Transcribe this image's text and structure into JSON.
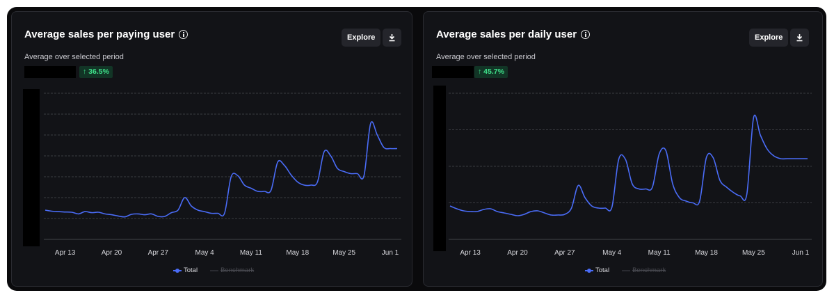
{
  "colors": {
    "line": "#4a6cf7",
    "grid": "#4a4b52",
    "badge_bg": "#123526",
    "badge_fg": "#3fe08a"
  },
  "buttons": {
    "explore_label": "Explore"
  },
  "cards": [
    {
      "title": "Average sales per paying user",
      "subtitle": "Average over selected period",
      "change": "↑ 36.5%",
      "legend": {
        "total": "Total",
        "benchmark": "Benchmark"
      }
    },
    {
      "title": "Average sales per daily user",
      "subtitle": "Average over selected period",
      "change": "↑ 45.7%",
      "legend": {
        "total": "Total",
        "benchmark": "Benchmark"
      }
    }
  ],
  "chart_data": [
    {
      "type": "line",
      "title": "Average sales per paying user",
      "x_ticks": [
        "Apr 13",
        "Apr 20",
        "Apr 27",
        "May 4",
        "May 11",
        "May 18",
        "May 25",
        "Jun 1"
      ],
      "ylim": [
        0,
        7
      ],
      "y_ticks_shown": false,
      "grid": true,
      "legend_position": "bottom",
      "series": [
        {
          "name": "Total",
          "x": [
            "Apr 10",
            "Apr 11",
            "Apr 12",
            "Apr 13",
            "Apr 14",
            "Apr 15",
            "Apr 16",
            "Apr 17",
            "Apr 18",
            "Apr 19",
            "Apr 20",
            "Apr 21",
            "Apr 22",
            "Apr 23",
            "Apr 24",
            "Apr 25",
            "Apr 26",
            "Apr 27",
            "Apr 28",
            "Apr 29",
            "Apr 30",
            "May 1",
            "May 2",
            "May 3",
            "May 4",
            "May 5",
            "May 6",
            "May 7",
            "May 8",
            "May 9",
            "May 10",
            "May 11",
            "May 12",
            "May 13",
            "May 14",
            "May 15",
            "May 16",
            "May 17",
            "May 18",
            "May 19",
            "May 20",
            "May 21",
            "May 22",
            "May 23",
            "May 24",
            "May 25",
            "May 26",
            "May 27",
            "May 28",
            "May 29",
            "May 30",
            "May 31",
            "Jun 1",
            "Jun 2"
          ],
          "values": [
            1.4,
            1.35,
            1.33,
            1.31,
            1.3,
            1.22,
            1.33,
            1.28,
            1.3,
            1.22,
            1.18,
            1.12,
            1.08,
            1.2,
            1.22,
            1.18,
            1.22,
            1.1,
            1.1,
            1.28,
            1.4,
            2.0,
            1.6,
            1.4,
            1.33,
            1.25,
            1.25,
            1.25,
            3.0,
            3.05,
            2.6,
            2.45,
            2.3,
            2.3,
            2.35,
            3.7,
            3.55,
            3.1,
            2.75,
            2.6,
            2.6,
            2.75,
            4.2,
            4.0,
            3.4,
            3.25,
            3.15,
            3.15,
            3.05,
            5.55,
            5.0,
            4.4,
            4.35,
            4.35
          ]
        }
      ]
    },
    {
      "type": "line",
      "title": "Average sales per daily user",
      "x_ticks": [
        "Apr 13",
        "Apr 20",
        "Apr 27",
        "May 4",
        "May 11",
        "May 18",
        "May 25",
        "Jun 1"
      ],
      "ylim": [
        0,
        4.2
      ],
      "y_ticks_shown": false,
      "grid": true,
      "legend_position": "bottom",
      "series": [
        {
          "name": "Total",
          "x": [
            "Apr 10",
            "Apr 11",
            "Apr 12",
            "Apr 13",
            "Apr 14",
            "Apr 15",
            "Apr 16",
            "Apr 17",
            "Apr 18",
            "Apr 19",
            "Apr 20",
            "Apr 21",
            "Apr 22",
            "Apr 23",
            "Apr 24",
            "Apr 25",
            "Apr 26",
            "Apr 27",
            "Apr 28",
            "Apr 29",
            "Apr 30",
            "May 1",
            "May 2",
            "May 3",
            "May 4",
            "May 5",
            "May 6",
            "May 7",
            "May 8",
            "May 9",
            "May 10",
            "May 11",
            "May 12",
            "May 13",
            "May 14",
            "May 15",
            "May 16",
            "May 17",
            "May 18",
            "May 19",
            "May 20",
            "May 21",
            "May 22",
            "May 23",
            "May 24",
            "May 25",
            "May 26",
            "May 27",
            "May 28",
            "May 29",
            "May 30",
            "May 31",
            "Jun 1",
            "Jun 2"
          ],
          "values": [
            0.96,
            0.88,
            0.82,
            0.8,
            0.8,
            0.86,
            0.88,
            0.8,
            0.76,
            0.72,
            0.68,
            0.72,
            0.8,
            0.82,
            0.76,
            0.7,
            0.7,
            0.72,
            0.9,
            1.55,
            1.2,
            0.96,
            0.9,
            0.9,
            0.93,
            2.3,
            2.3,
            1.6,
            1.45,
            1.45,
            1.5,
            2.45,
            2.55,
            1.6,
            1.2,
            1.1,
            1.05,
            1.1,
            2.35,
            2.35,
            1.7,
            1.5,
            1.35,
            1.25,
            1.3,
            3.5,
            3.0,
            2.6,
            2.4,
            2.32,
            2.32,
            2.32,
            2.32,
            2.32
          ]
        }
      ]
    }
  ]
}
